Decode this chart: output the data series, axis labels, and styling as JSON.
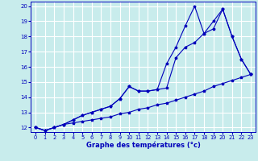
{
  "xlabel": "Graphe des températures (°c)",
  "xlim": [
    -0.5,
    23.5
  ],
  "ylim": [
    11.7,
    20.3
  ],
  "yticks": [
    12,
    13,
    14,
    15,
    16,
    17,
    18,
    19,
    20
  ],
  "xticks": [
    0,
    1,
    2,
    3,
    4,
    5,
    6,
    7,
    8,
    9,
    10,
    11,
    12,
    13,
    14,
    15,
    16,
    17,
    18,
    19,
    20,
    21,
    22,
    23
  ],
  "background_color": "#c8ecec",
  "grid_color": "#b0d8d8",
  "line_color": "#0000bb",
  "line1_y": [
    12.0,
    11.8,
    12.0,
    12.2,
    12.3,
    12.4,
    12.5,
    12.6,
    12.7,
    12.9,
    13.0,
    13.2,
    13.3,
    13.5,
    13.6,
    13.8,
    14.0,
    14.2,
    14.4,
    14.7,
    14.9,
    15.1,
    15.3,
    15.5
  ],
  "line2_y": [
    12.0,
    11.8,
    12.0,
    12.2,
    12.5,
    12.8,
    13.0,
    13.2,
    13.4,
    13.9,
    14.7,
    14.4,
    14.4,
    14.5,
    14.6,
    16.6,
    17.3,
    17.6,
    18.2,
    19.0,
    19.8,
    18.0,
    16.5,
    15.5
  ],
  "line3_y": [
    12.0,
    11.8,
    12.0,
    12.2,
    12.5,
    12.8,
    13.0,
    13.2,
    13.4,
    13.9,
    14.7,
    14.4,
    14.4,
    14.5,
    16.2,
    17.3,
    18.7,
    20.0,
    18.2,
    18.5,
    19.8,
    18.0,
    16.5,
    15.5
  ]
}
